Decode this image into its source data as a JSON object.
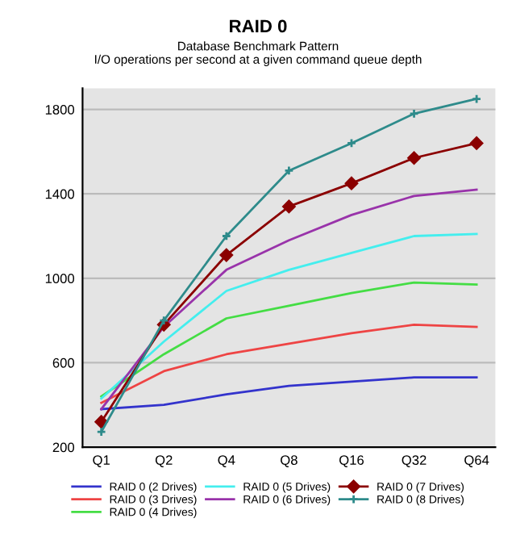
{
  "chart_data": {
    "type": "line",
    "title": "RAID 0",
    "subtitle": "Database Benchmark Pattern\nI/O operations per second at a given command queue depth",
    "categories": [
      "Q1",
      "Q2",
      "Q4",
      "Q8",
      "Q16",
      "Q32",
      "Q64"
    ],
    "series": [
      {
        "name": "RAID 0 (2 Drives)",
        "color": "#3333cc",
        "values": [
          380,
          400,
          450,
          490,
          510,
          530,
          530
        ]
      },
      {
        "name": "RAID 0 (3 Drives)",
        "color": "#ee4444",
        "values": [
          410,
          560,
          640,
          690,
          740,
          780,
          770
        ]
      },
      {
        "name": "RAID 0 (4 Drives)",
        "color": "#44dd44",
        "values": [
          440,
          640,
          810,
          870,
          930,
          980,
          970
        ]
      },
      {
        "name": "RAID 0 (5 Drives)",
        "color": "#44eeee",
        "values": [
          430,
          700,
          940,
          1040,
          1120,
          1200,
          1210
        ]
      },
      {
        "name": "RAID 0 (6 Drives)",
        "color": "#9933aa",
        "values": [
          380,
          770,
          1040,
          1180,
          1300,
          1390,
          1420
        ]
      },
      {
        "name": "RAID 0 (7 Drives)",
        "color": "#8b0000",
        "marker": "diamond",
        "values": [
          320,
          780,
          1110,
          1340,
          1450,
          1570,
          1640
        ]
      },
      {
        "name": "RAID 0 (8 Drives)",
        "color": "#2e8b8b",
        "marker": "cross",
        "values": [
          272,
          800,
          1200,
          1510,
          1640,
          1780,
          1850
        ]
      }
    ],
    "ylim": [
      200,
      1900
    ],
    "yticks": [
      200,
      600,
      1000,
      1400,
      1800
    ],
    "grid": "y",
    "legend": "bottom"
  }
}
